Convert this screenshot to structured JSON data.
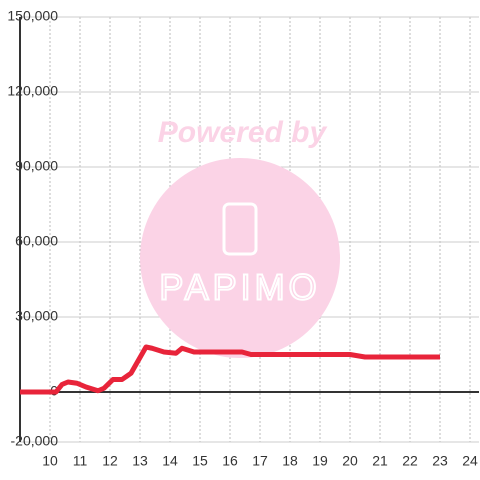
{
  "chart_data": {
    "type": "line",
    "watermark": {
      "line1": "Powered by",
      "line2": "PAPIMO"
    },
    "x": [
      9,
      10.2,
      10.4,
      10.6,
      10.9,
      11.2,
      11.6,
      11.8,
      12.1,
      12.4,
      12.7,
      13.2,
      13.4,
      13.8,
      14.2,
      14.4,
      14.8,
      15.5,
      16.4,
      16.7,
      17.5,
      20,
      20.5,
      23
    ],
    "series": [
      {
        "color": "#e8243a",
        "values": [
          0,
          0,
          3000,
          4000,
          3500,
          2000,
          500,
          1500,
          5000,
          5000,
          7500,
          18000,
          17500,
          16000,
          15500,
          17500,
          16000,
          16000,
          16000,
          15000,
          15000,
          15000,
          14000,
          14000
        ]
      }
    ],
    "xlim": [
      9,
      24.3
    ],
    "xticks": [
      10,
      11,
      12,
      13,
      14,
      15,
      16,
      17,
      18,
      19,
      20,
      21,
      22,
      23,
      24
    ],
    "ylim": [
      -20000,
      150000
    ],
    "yticks": [
      {
        "value": -20000,
        "label": "-20,000"
      },
      0,
      {
        "value": 30000,
        "label": "30,000"
      },
      {
        "value": 60000,
        "label": "60,000"
      },
      {
        "value": 90000,
        "label": "90,000"
      },
      {
        "value": 120000,
        "label": "120,000"
      },
      {
        "value": 150000,
        "label": "150,000"
      }
    ],
    "grid": true
  }
}
